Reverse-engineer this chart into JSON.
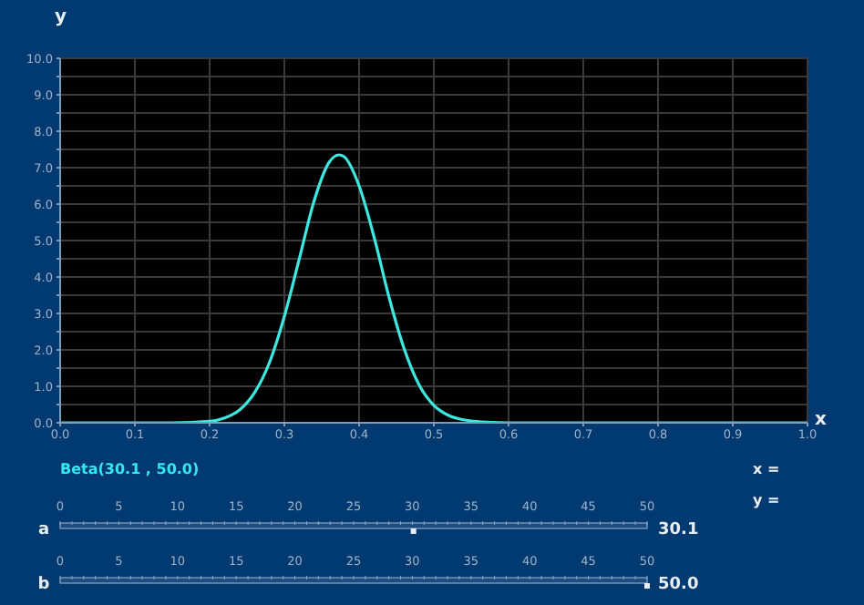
{
  "chart_data": {
    "type": "line",
    "xlabel": "x",
    "ylabel": "y",
    "x": [
      0,
      0.1,
      0.15,
      0.2,
      0.22,
      0.24,
      0.26,
      0.28,
      0.3,
      0.32,
      0.34,
      0.36,
      0.373,
      0.38,
      0.4,
      0.42,
      0.44,
      0.46,
      0.48,
      0.5,
      0.52,
      0.54,
      0.56,
      0.58,
      0.6,
      0.7,
      0.8,
      0.9,
      1.0
    ],
    "series": [
      {
        "color": "#3de8e0",
        "values": [
          0,
          0,
          0,
          0.04,
          0.13,
          0.35,
          0.82,
          1.65,
          2.92,
          4.5,
          6.1,
          7.15,
          7.35,
          7.3,
          6.5,
          5.1,
          3.45,
          2.05,
          1.05,
          0.48,
          0.2,
          0.08,
          0.03,
          0.01,
          0,
          0,
          0,
          0,
          0
        ]
      }
    ],
    "xlim": [
      0,
      1
    ],
    "xticks": [
      {
        "value": 0,
        "label": "0.0"
      },
      0.1,
      0.2,
      0.3,
      0.4,
      0.5,
      0.6,
      0.7,
      0.8,
      0.9,
      {
        "value": 1,
        "label": "1.0"
      }
    ],
    "ylim": [
      0,
      10
    ],
    "yticks": [
      {
        "value": 0,
        "label": "0.0"
      },
      {
        "value": 0.5,
        "label": null
      },
      {
        "value": 1,
        "label": "1.0"
      },
      {
        "value": 1.5,
        "label": null
      },
      {
        "value": 2,
        "label": "2.0"
      },
      {
        "value": 2.5,
        "label": null
      },
      {
        "value": 3,
        "label": "3.0"
      },
      {
        "value": 3.5,
        "label": null
      },
      {
        "value": 4,
        "label": "4.0"
      },
      {
        "value": 4.5,
        "label": null
      },
      {
        "value": 5,
        "label": "5.0"
      },
      {
        "value": 5.5,
        "label": null
      },
      {
        "value": 6,
        "label": "6.0"
      },
      {
        "value": 6.5,
        "label": null
      },
      {
        "value": 7,
        "label": "7.0"
      },
      {
        "value": 7.5,
        "label": null
      },
      {
        "value": 8,
        "label": "8.0"
      },
      {
        "value": 8.5,
        "label": null
      },
      {
        "value": 9,
        "label": "9.0"
      },
      {
        "value": 9.5,
        "label": null
      },
      {
        "value": 10,
        "label": "10.0"
      }
    ],
    "grid": true,
    "marker": "none",
    "line_style": "solid",
    "annotations": [
      "Beta(30.1 , 50.0)",
      "x =",
      "y =",
      "a",
      "30.1",
      "b",
      "50.0",
      "0",
      "5",
      "10",
      "15",
      "20",
      "25",
      "30",
      "35",
      "40",
      "45",
      "50",
      "0",
      "5",
      "10",
      "15",
      "20",
      "25",
      "30",
      "35",
      "40",
      "45",
      "50"
    ]
  }
}
